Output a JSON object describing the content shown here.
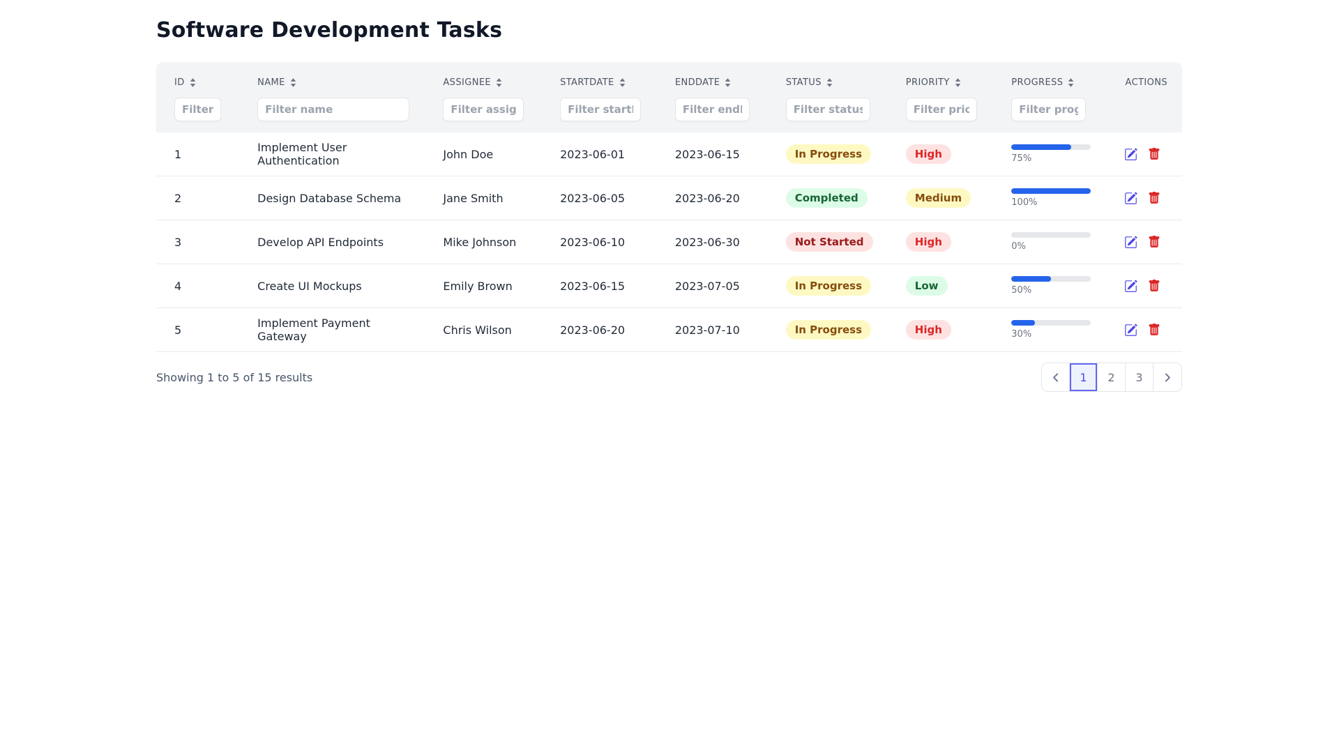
{
  "page": {
    "title": "Software Development Tasks"
  },
  "table": {
    "columns": [
      {
        "key": "id",
        "label": "ID",
        "sortable": true,
        "filter_placeholder": "Filter id"
      },
      {
        "key": "name",
        "label": "NAME",
        "sortable": true,
        "filter_placeholder": "Filter name"
      },
      {
        "key": "assignee",
        "label": "ASSIGNEE",
        "sortable": true,
        "filter_placeholder": "Filter assignee"
      },
      {
        "key": "startDate",
        "label": "STARTDATE",
        "sortable": true,
        "filter_placeholder": "Filter startDate"
      },
      {
        "key": "endDate",
        "label": "ENDDATE",
        "sortable": true,
        "filter_placeholder": "Filter endDate"
      },
      {
        "key": "status",
        "label": "STATUS",
        "sortable": true,
        "filter_placeholder": "Filter status"
      },
      {
        "key": "priority",
        "label": "PRIORITY",
        "sortable": true,
        "filter_placeholder": "Filter priority"
      },
      {
        "key": "progress",
        "label": "PROGRESS",
        "sortable": true,
        "filter_placeholder": "Filter progress"
      },
      {
        "key": "actions",
        "label": "ACTIONS",
        "sortable": false,
        "filter_placeholder": ""
      }
    ],
    "rows": [
      {
        "id": "1",
        "name": "Implement User Authentication",
        "assignee": "John Doe",
        "startDate": "2023-06-01",
        "endDate": "2023-06-15",
        "status": "In Progress",
        "priority": "High",
        "progress": 75,
        "progress_label": "75%"
      },
      {
        "id": "2",
        "name": "Design Database Schema",
        "assignee": "Jane Smith",
        "startDate": "2023-06-05",
        "endDate": "2023-06-20",
        "status": "Completed",
        "priority": "Medium",
        "progress": 100,
        "progress_label": "100%"
      },
      {
        "id": "3",
        "name": "Develop API Endpoints",
        "assignee": "Mike Johnson",
        "startDate": "2023-06-10",
        "endDate": "2023-06-30",
        "status": "Not Started",
        "priority": "High",
        "progress": 0,
        "progress_label": "0%"
      },
      {
        "id": "4",
        "name": "Create UI Mockups",
        "assignee": "Emily Brown",
        "startDate": "2023-06-15",
        "endDate": "2023-07-05",
        "status": "In Progress",
        "priority": "Low",
        "progress": 50,
        "progress_label": "50%"
      },
      {
        "id": "5",
        "name": "Implement Payment Gateway",
        "assignee": "Chris Wilson",
        "startDate": "2023-06-20",
        "endDate": "2023-07-10",
        "status": "In Progress",
        "priority": "High",
        "progress": 30,
        "progress_label": "30%"
      }
    ]
  },
  "badge_styles": {
    "In Progress": {
      "bg": "#fef9c3",
      "fg": "#854d0e"
    },
    "Completed": {
      "bg": "#dcfce7",
      "fg": "#166534"
    },
    "Not Started": {
      "bg": "#fee2e2",
      "fg": "#991b1b"
    },
    "High": {
      "bg": "#fee2e2",
      "fg": "#dc2626"
    },
    "Medium": {
      "bg": "#fef9c3",
      "fg": "#854d0e"
    },
    "Low": {
      "bg": "#dcfce7",
      "fg": "#166534"
    }
  },
  "colors": {
    "progress_fill": "#2563eb",
    "progress_track": "#e5e7eb",
    "edit_icon": "#4f46e5",
    "delete_icon": "#dc2626",
    "active_page_bg": "#eef2ff",
    "active_page_border": "#6366f1",
    "active_page_text": "#4f46e5"
  },
  "icons": {
    "sort": "sort-arrows-icon",
    "edit": "edit-pencil-square-icon",
    "delete": "trash-icon",
    "prev": "chevron-left-icon",
    "next": "chevron-right-icon"
  },
  "pagination": {
    "summary": "Showing 1 to 5 of 15 results",
    "pages": [
      "1",
      "2",
      "3"
    ],
    "active_page": "1"
  }
}
